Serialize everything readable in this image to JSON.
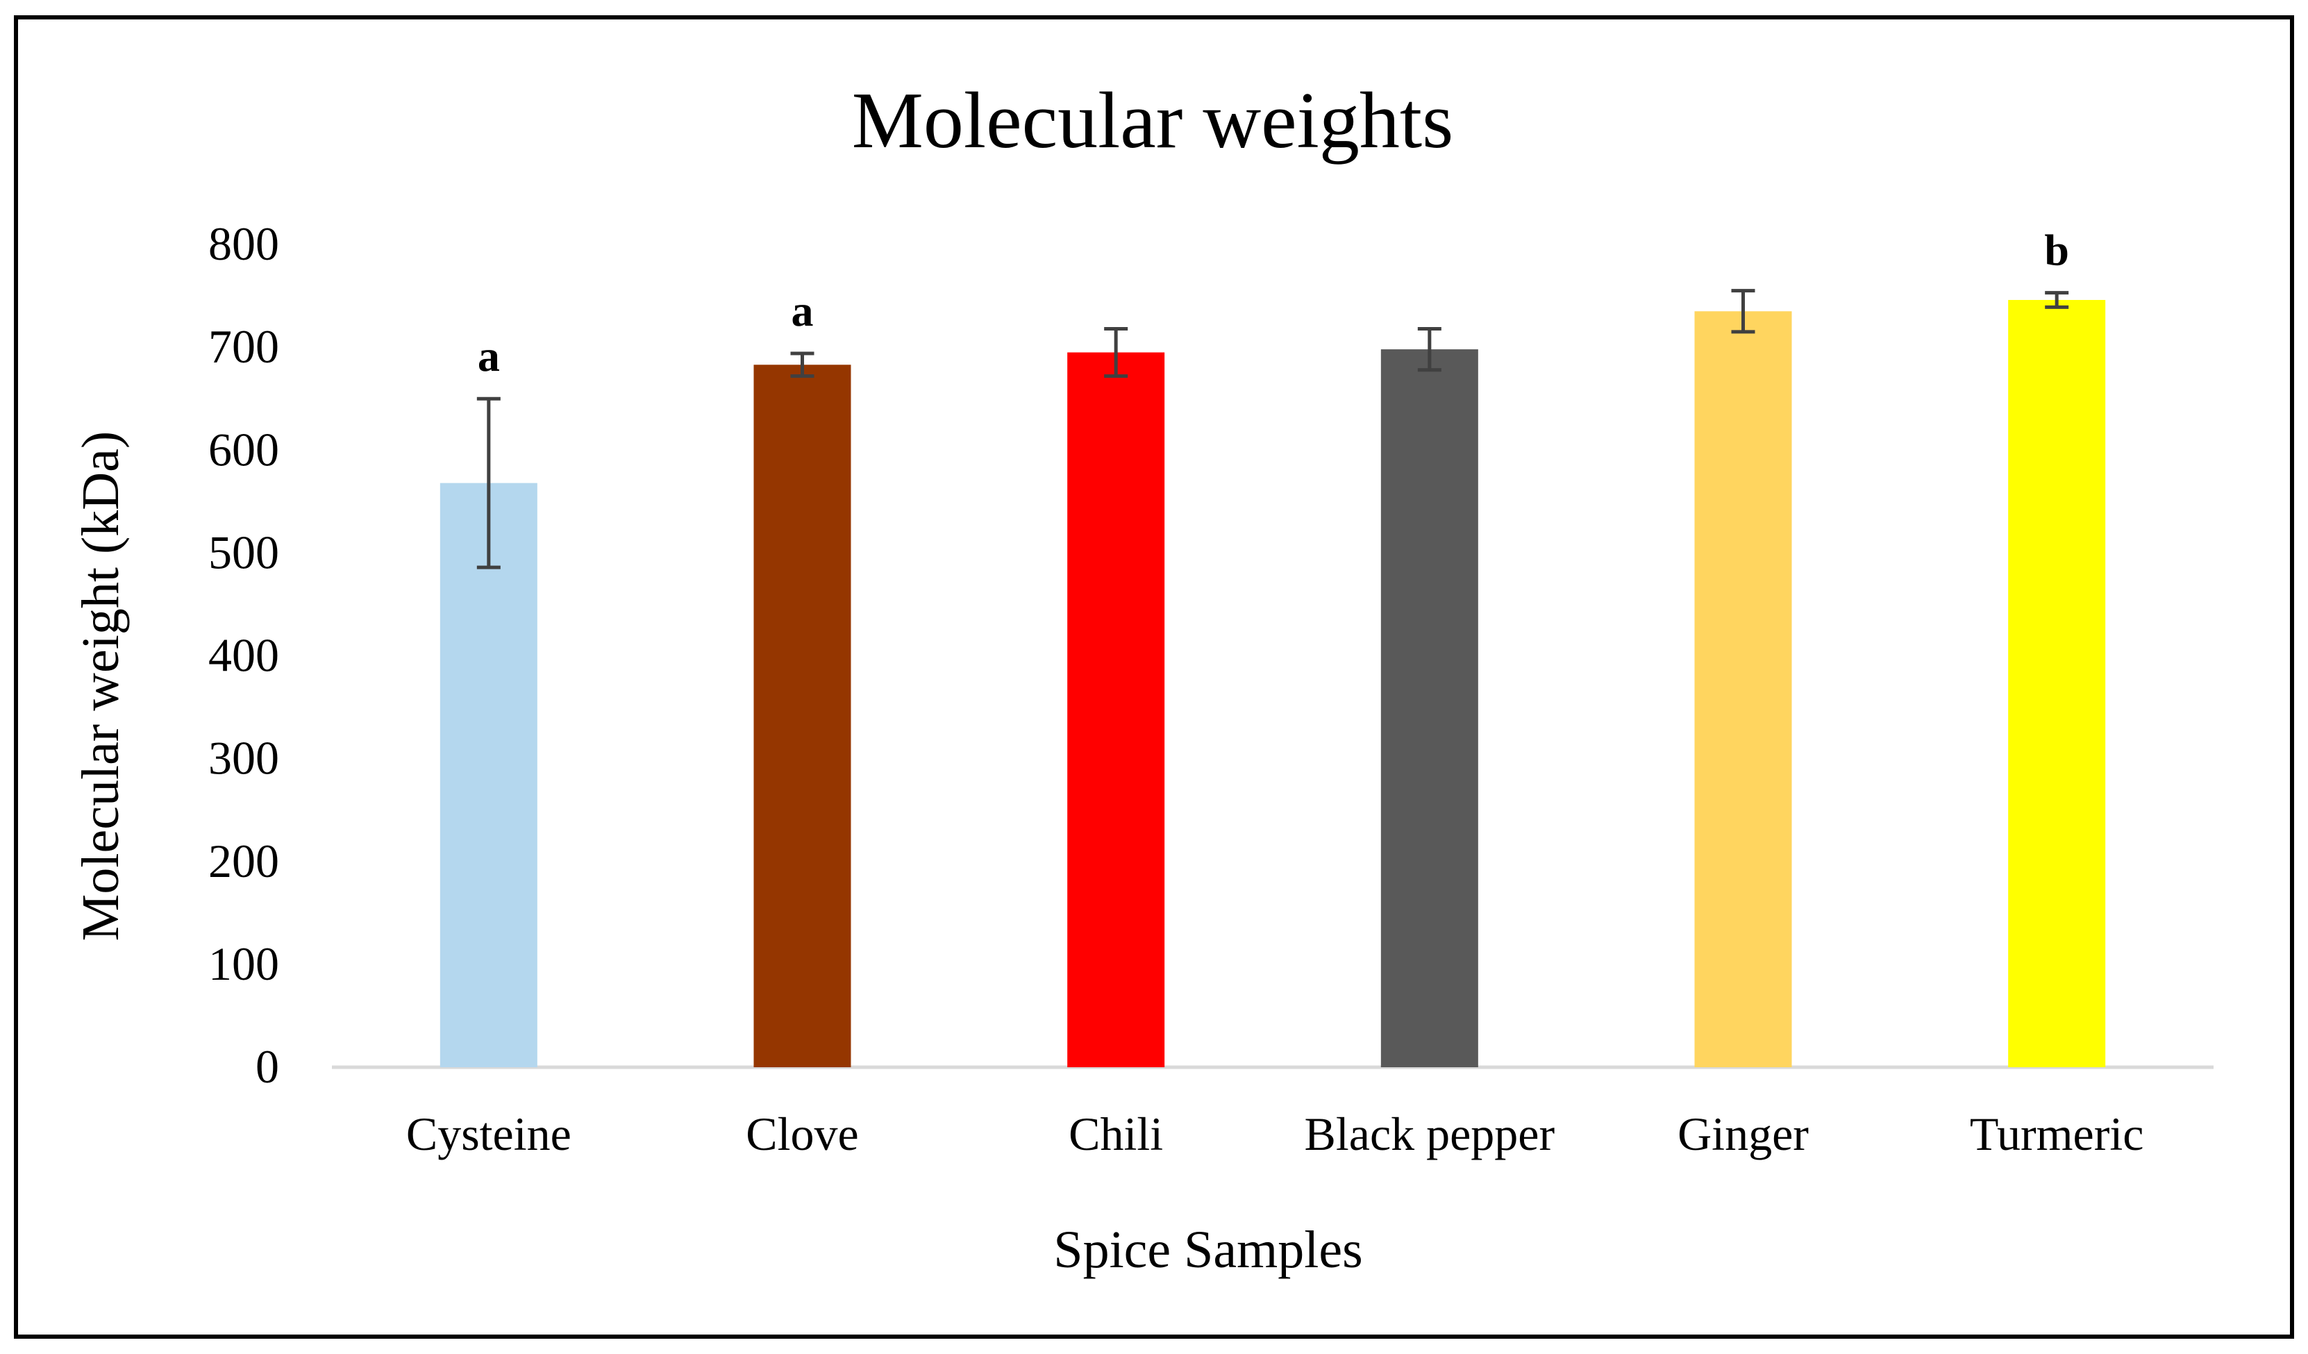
{
  "chart_data": {
    "type": "bar",
    "title": "Molecular weights",
    "xlabel": "Spice Samples",
    "ylabel": "Molecular weight (kDa)",
    "ylim": [
      0,
      800
    ],
    "yticks": [
      0,
      100,
      200,
      300,
      400,
      500,
      600,
      700,
      800
    ],
    "categories": [
      "Cysteine",
      "Clove",
      "Chili",
      "Black pepper",
      "Ginger",
      "Turmeric"
    ],
    "values": [
      568,
      683,
      695,
      698,
      735,
      746
    ],
    "errors": [
      82,
      11,
      23,
      20,
      20,
      7
    ],
    "significance": [
      "a",
      "a",
      "",
      "",
      "",
      "b"
    ],
    "colors": [
      "#B4D7EE",
      "#953600",
      "#FF0000",
      "#595959",
      "#FFD55F",
      "#FFFF00"
    ],
    "grid": false,
    "legend": "none"
  }
}
